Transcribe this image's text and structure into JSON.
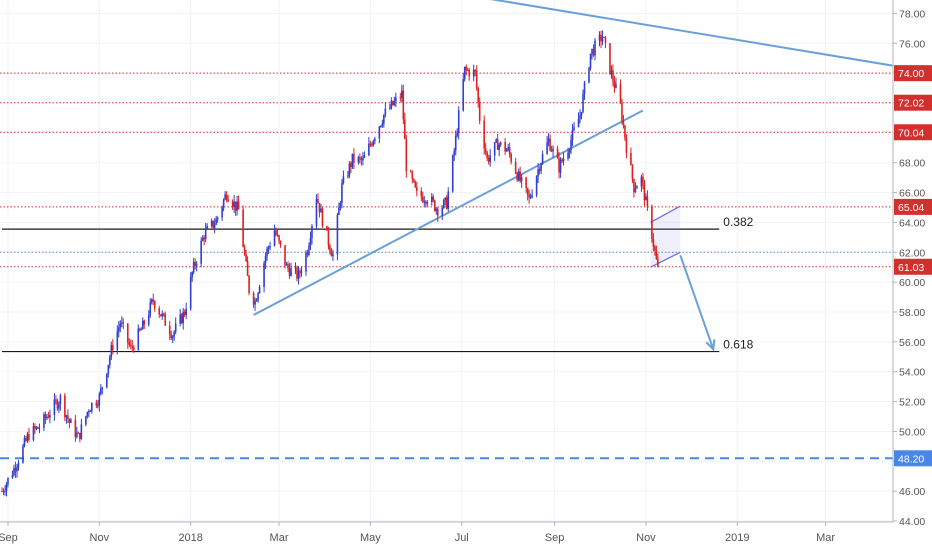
{
  "chart_data": {
    "type": "candlestick",
    "x_range": [
      "2017-08-28",
      "2019-04-15"
    ],
    "y_range": [
      44.0,
      78.9
    ],
    "y_ticks": [
      44.0,
      46.0,
      48.0,
      50.0,
      52.0,
      54.0,
      56.0,
      58.0,
      60.0,
      62.0,
      64.0,
      66.0,
      68.0,
      70.0,
      72.0,
      74.0,
      76.0,
      78.0
    ],
    "x_ticks": [
      {
        "label": "Sep",
        "date": "2017-09-01"
      },
      {
        "label": "Nov",
        "date": "2017-11-01"
      },
      {
        "label": "2018",
        "date": "2018-01-01"
      },
      {
        "label": "Mar",
        "date": "2018-03-01"
      },
      {
        "label": "May",
        "date": "2018-05-01"
      },
      {
        "label": "Jul",
        "date": "2018-07-01"
      },
      {
        "label": "Sep",
        "date": "2018-09-01"
      },
      {
        "label": "Nov",
        "date": "2018-11-01"
      },
      {
        "label": "2019",
        "date": "2019-01-01"
      },
      {
        "label": "Mar",
        "date": "2019-03-01"
      }
    ],
    "price_path": [
      [
        "2017-08-28",
        46.0
      ],
      [
        "2017-09-05",
        47.5
      ],
      [
        "2017-09-15",
        49.8
      ],
      [
        "2017-09-22",
        50.3
      ],
      [
        "2017-10-01",
        51.6
      ],
      [
        "2017-10-06",
        52.2
      ],
      [
        "2017-10-12",
        50.6
      ],
      [
        "2017-10-18",
        49.6
      ],
      [
        "2017-10-25",
        51.6
      ],
      [
        "2017-11-01",
        52.3
      ],
      [
        "2017-11-10",
        55.8
      ],
      [
        "2017-11-15",
        57.3
      ],
      [
        "2017-11-22",
        55.5
      ],
      [
        "2017-11-30",
        57.0
      ],
      [
        "2017-12-07",
        58.8
      ],
      [
        "2017-12-14",
        57.5
      ],
      [
        "2017-12-20",
        56.5
      ],
      [
        "2017-12-28",
        58.0
      ],
      [
        "2018-01-02",
        60.6
      ],
      [
        "2018-01-10",
        63.2
      ],
      [
        "2018-01-18",
        64.1
      ],
      [
        "2018-01-25",
        66.0
      ],
      [
        "2018-02-02",
        64.8
      ],
      [
        "2018-02-09",
        59.5
      ],
      [
        "2018-02-13",
        58.7
      ],
      [
        "2018-02-20",
        61.8
      ],
      [
        "2018-02-26",
        63.5
      ],
      [
        "2018-03-06",
        61.0
      ],
      [
        "2018-03-14",
        60.4
      ],
      [
        "2018-03-20",
        62.2
      ],
      [
        "2018-03-26",
        65.8
      ],
      [
        "2018-04-02",
        63.0
      ],
      [
        "2018-04-06",
        61.8
      ],
      [
        "2018-04-12",
        66.4
      ],
      [
        "2018-04-19",
        68.2
      ],
      [
        "2018-04-26",
        68.1
      ],
      [
        "2018-05-03",
        69.7
      ],
      [
        "2018-05-10",
        71.2
      ],
      [
        "2018-05-17",
        72.0
      ],
      [
        "2018-05-22",
        72.6
      ],
      [
        "2018-05-25",
        67.8
      ],
      [
        "2018-06-01",
        65.8
      ],
      [
        "2018-06-08",
        65.7
      ],
      [
        "2018-06-15",
        64.9
      ],
      [
        "2018-06-21",
        65.3
      ],
      [
        "2018-06-26",
        68.8
      ],
      [
        "2018-07-03",
        74.2
      ],
      [
        "2018-07-10",
        74.0
      ],
      [
        "2018-07-13",
        71.0
      ],
      [
        "2018-07-18",
        68.2
      ],
      [
        "2018-07-25",
        69.3
      ],
      [
        "2018-08-01",
        68.8
      ],
      [
        "2018-08-08",
        67.0
      ],
      [
        "2018-08-15",
        65.5
      ],
      [
        "2018-08-22",
        67.9
      ],
      [
        "2018-08-28",
        69.5
      ],
      [
        "2018-09-04",
        67.7
      ],
      [
        "2018-09-10",
        69.0
      ],
      [
        "2018-09-18",
        71.2
      ],
      [
        "2018-09-25",
        75.3
      ],
      [
        "2018-10-03",
        76.5
      ],
      [
        "2018-10-08",
        74.3
      ],
      [
        "2018-10-15",
        71.8
      ],
      [
        "2018-10-19",
        69.1
      ],
      [
        "2018-10-24",
        66.4
      ],
      [
        "2018-10-29",
        66.9
      ],
      [
        "2018-11-05",
        63.2
      ],
      [
        "2018-11-09",
        60.8
      ]
    ],
    "horizontal_levels": [
      {
        "value": 74.0,
        "label": "74.00",
        "style": "dotted",
        "color": "#d32f2f"
      },
      {
        "value": 72.02,
        "label": "72.02",
        "style": "dotted",
        "color": "#d32f2f"
      },
      {
        "value": 70.04,
        "label": "70.04",
        "style": "dotted",
        "color": "#d32f2f"
      },
      {
        "value": 65.04,
        "label": "65.04",
        "style": "dotted",
        "color": "#d32f2f"
      },
      {
        "value": 61.03,
        "label": "61.03",
        "style": "dotted",
        "color": "#d32f2f"
      },
      {
        "value": 62.0,
        "label": "",
        "style": "dotted",
        "color": "#5b8bd0"
      },
      {
        "value": 48.2,
        "label": "48.20",
        "style": "dashed",
        "color": "#4a86e8"
      }
    ],
    "fib_levels": [
      {
        "value": 63.55,
        "label": "0.382",
        "start": "2017-08-28",
        "end": "2018-12-20"
      },
      {
        "value": 55.35,
        "label": "0.618",
        "start": "2017-08-28",
        "end": "2018-12-20"
      }
    ],
    "trendlines": [
      {
        "from": [
          "2018-02-12",
          57.8
        ],
        "to": [
          "2018-10-30",
          71.5
        ],
        "color": "#6a9fd8"
      },
      {
        "from": [
          "2018-07-12",
          79.1
        ],
        "to": [
          "2019-04-15",
          74.5
        ],
        "color": "#6a9fd8"
      }
    ],
    "projection_arrow": {
      "from": [
        "2018-11-24",
        61.8
      ],
      "to": [
        "2018-12-16",
        55.5
      ]
    },
    "channel": {
      "upper": [
        [
          "2018-11-04",
          64.0
        ],
        [
          "2018-11-24",
          65.1
        ]
      ],
      "lower": [
        [
          "2018-11-04",
          61.0
        ],
        [
          "2018-11-24",
          62.0
        ]
      ]
    },
    "colors": {
      "up": "#2f3fd0",
      "down": "#e02020",
      "level": "#d32f2f",
      "trend": "#6a9fd8",
      "dashed": "#4a86e8"
    }
  }
}
